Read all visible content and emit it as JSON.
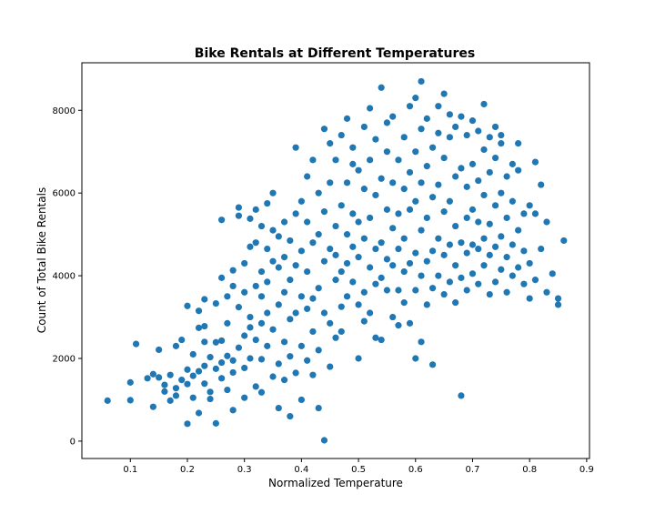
{
  "chart_data": {
    "type": "scatter",
    "title": "Bike Rentals at Different Temperatures",
    "xlabel": "Normalized Temperature",
    "ylabel": "Count of Total Bike Rentals",
    "xlim": [
      0.015,
      0.905
    ],
    "ylim": [
      -420,
      9150
    ],
    "xticks": [
      0.1,
      0.2,
      0.3,
      0.4,
      0.5,
      0.6,
      0.7,
      0.8,
      0.9
    ],
    "xtick_labels": [
      "0.1",
      "0.2",
      "0.3",
      "0.4",
      "0.5",
      "0.6",
      "0.7",
      "0.8",
      "0.9"
    ],
    "yticks": [
      0,
      2000,
      4000,
      6000,
      8000
    ],
    "ytick_labels": [
      "0",
      "2000",
      "4000",
      "6000",
      "8000"
    ],
    "grid": false,
    "legend": "none",
    "marker_color": "#1f77b4",
    "points": [
      [
        0.06,
        980
      ],
      [
        0.1,
        990
      ],
      [
        0.1,
        1420
      ],
      [
        0.11,
        2350
      ],
      [
        0.13,
        1520
      ],
      [
        0.14,
        1620
      ],
      [
        0.14,
        830
      ],
      [
        0.15,
        1540
      ],
      [
        0.15,
        2210
      ],
      [
        0.16,
        1360
      ],
      [
        0.16,
        1200
      ],
      [
        0.17,
        980
      ],
      [
        0.17,
        1600
      ],
      [
        0.18,
        1280
      ],
      [
        0.18,
        2300
      ],
      [
        0.18,
        1100
      ],
      [
        0.19,
        1480
      ],
      [
        0.19,
        2450
      ],
      [
        0.2,
        1730
      ],
      [
        0.2,
        1380
      ],
      [
        0.2,
        3270
      ],
      [
        0.2,
        420
      ],
      [
        0.21,
        1050
      ],
      [
        0.21,
        1580
      ],
      [
        0.21,
        2100
      ],
      [
        0.22,
        1690
      ],
      [
        0.22,
        2740
      ],
      [
        0.22,
        3150
      ],
      [
        0.22,
        680
      ],
      [
        0.23,
        1820
      ],
      [
        0.23,
        2400
      ],
      [
        0.23,
        2780
      ],
      [
        0.23,
        3430
      ],
      [
        0.23,
        1390
      ],
      [
        0.24,
        1190
      ],
      [
        0.24,
        1020
      ],
      [
        0.24,
        2030
      ],
      [
        0.25,
        2390
      ],
      [
        0.25,
        3330
      ],
      [
        0.25,
        1750
      ],
      [
        0.25,
        430
      ],
      [
        0.26,
        1900
      ],
      [
        0.26,
        2430
      ],
      [
        0.26,
        3950
      ],
      [
        0.26,
        5350
      ],
      [
        0.26,
        1520
      ],
      [
        0.27,
        2060
      ],
      [
        0.27,
        2850
      ],
      [
        0.27,
        3500
      ],
      [
        0.27,
        1240
      ],
      [
        0.28,
        1660
      ],
      [
        0.28,
        3750
      ],
      [
        0.28,
        4130
      ],
      [
        0.28,
        750
      ],
      [
        0.28,
        1950
      ],
      [
        0.29,
        2260
      ],
      [
        0.29,
        3240
      ],
      [
        0.29,
        5650
      ],
      [
        0.29,
        5450
      ],
      [
        0.3,
        1770
      ],
      [
        0.3,
        2550
      ],
      [
        0.3,
        4300
      ],
      [
        0.3,
        3600
      ],
      [
        0.3,
        1050
      ],
      [
        0.31,
        2000
      ],
      [
        0.31,
        2750
      ],
      [
        0.31,
        3000
      ],
      [
        0.31,
        5380
      ],
      [
        0.31,
        4700
      ],
      [
        0.32,
        1320
      ],
      [
        0.32,
        2450
      ],
      [
        0.32,
        3750
      ],
      [
        0.32,
        4800
      ],
      [
        0.32,
        5600
      ],
      [
        0.33,
        1980
      ],
      [
        0.33,
        2850
      ],
      [
        0.33,
        3500
      ],
      [
        0.33,
        4100
      ],
      [
        0.33,
        5200
      ],
      [
        0.33,
        1180
      ],
      [
        0.34,
        2300
      ],
      [
        0.34,
        3100
      ],
      [
        0.34,
        3850
      ],
      [
        0.34,
        4650
      ],
      [
        0.34,
        5750
      ],
      [
        0.35,
        1560
      ],
      [
        0.35,
        2700
      ],
      [
        0.35,
        4350
      ],
      [
        0.35,
        5100
      ],
      [
        0.35,
        6000
      ],
      [
        0.36,
        1870
      ],
      [
        0.36,
        3300
      ],
      [
        0.36,
        4200
      ],
      [
        0.36,
        4950
      ],
      [
        0.36,
        800
      ],
      [
        0.37,
        2400
      ],
      [
        0.37,
        3600
      ],
      [
        0.37,
        4450
      ],
      [
        0.37,
        5300
      ],
      [
        0.37,
        1480
      ],
      [
        0.38,
        2050
      ],
      [
        0.38,
        2950
      ],
      [
        0.38,
        3900
      ],
      [
        0.38,
        4850
      ],
      [
        0.38,
        600
      ],
      [
        0.39,
        1650
      ],
      [
        0.39,
        3100
      ],
      [
        0.39,
        4250
      ],
      [
        0.39,
        5500
      ],
      [
        0.39,
        7100
      ],
      [
        0.4,
        2300
      ],
      [
        0.4,
        3500
      ],
      [
        0.4,
        4600
      ],
      [
        0.4,
        5800
      ],
      [
        0.4,
        1000
      ],
      [
        0.41,
        1950
      ],
      [
        0.41,
        3200
      ],
      [
        0.41,
        4100
      ],
      [
        0.41,
        5300
      ],
      [
        0.41,
        6400
      ],
      [
        0.42,
        1600
      ],
      [
        0.42,
        2650
      ],
      [
        0.42,
        3450
      ],
      [
        0.42,
        4800
      ],
      [
        0.42,
        6800
      ],
      [
        0.43,
        2200
      ],
      [
        0.43,
        3700
      ],
      [
        0.43,
        5000
      ],
      [
        0.43,
        6000
      ],
      [
        0.43,
        800
      ],
      [
        0.44,
        20
      ],
      [
        0.44,
        3100
      ],
      [
        0.44,
        4350
      ],
      [
        0.44,
        5550
      ],
      [
        0.44,
        7550
      ],
      [
        0.45,
        1800
      ],
      [
        0.45,
        2850
      ],
      [
        0.45,
        4650
      ],
      [
        0.45,
        6250
      ],
      [
        0.45,
        7200
      ],
      [
        0.46,
        2500
      ],
      [
        0.46,
        3900
      ],
      [
        0.46,
        5200
      ],
      [
        0.46,
        6800
      ],
      [
        0.46,
        4500
      ],
      [
        0.47,
        3250
      ],
      [
        0.47,
        4100
      ],
      [
        0.47,
        5700
      ],
      [
        0.47,
        7400
      ],
      [
        0.47,
        2650
      ],
      [
        0.48,
        3500
      ],
      [
        0.48,
        4300
      ],
      [
        0.48,
        5000
      ],
      [
        0.48,
        6250
      ],
      [
        0.48,
        7800
      ],
      [
        0.49,
        3850
      ],
      [
        0.49,
        4700
      ],
      [
        0.49,
        5500
      ],
      [
        0.49,
        6700
      ],
      [
        0.49,
        7100
      ],
      [
        0.5,
        2000
      ],
      [
        0.5,
        3300
      ],
      [
        0.5,
        4450
      ],
      [
        0.5,
        5300
      ],
      [
        0.5,
        6550
      ],
      [
        0.51,
        2900
      ],
      [
        0.51,
        3600
      ],
      [
        0.51,
        4900
      ],
      [
        0.51,
        6100
      ],
      [
        0.51,
        7600
      ],
      [
        0.52,
        3100
      ],
      [
        0.52,
        4200
      ],
      [
        0.52,
        5400
      ],
      [
        0.52,
        6800
      ],
      [
        0.52,
        8050
      ],
      [
        0.53,
        2500
      ],
      [
        0.53,
        3800
      ],
      [
        0.53,
        4650
      ],
      [
        0.53,
        5950
      ],
      [
        0.53,
        7300
      ],
      [
        0.54,
        2450
      ],
      [
        0.54,
        3950
      ],
      [
        0.54,
        4800
      ],
      [
        0.54,
        6350
      ],
      [
        0.54,
        8550
      ],
      [
        0.55,
        3650
      ],
      [
        0.55,
        4400
      ],
      [
        0.55,
        5600
      ],
      [
        0.55,
        7000
      ],
      [
        0.55,
        7700
      ],
      [
        0.56,
        3000
      ],
      [
        0.56,
        4250
      ],
      [
        0.56,
        5150
      ],
      [
        0.56,
        6250
      ],
      [
        0.56,
        7850
      ],
      [
        0.57,
        2800
      ],
      [
        0.57,
        3650
      ],
      [
        0.57,
        4650
      ],
      [
        0.57,
        5500
      ],
      [
        0.57,
        6800
      ],
      [
        0.58,
        3350
      ],
      [
        0.58,
        4100
      ],
      [
        0.58,
        4900
      ],
      [
        0.58,
        6100
      ],
      [
        0.58,
        7350
      ],
      [
        0.59,
        2850
      ],
      [
        0.59,
        4300
      ],
      [
        0.59,
        5600
      ],
      [
        0.59,
        6500
      ],
      [
        0.59,
        8100
      ],
      [
        0.6,
        2000
      ],
      [
        0.6,
        3650
      ],
      [
        0.6,
        4550
      ],
      [
        0.6,
        5800
      ],
      [
        0.6,
        7000
      ],
      [
        0.6,
        8300
      ],
      [
        0.61,
        2400
      ],
      [
        0.61,
        4000
      ],
      [
        0.61,
        5100
      ],
      [
        0.61,
        6250
      ],
      [
        0.61,
        7550
      ],
      [
        0.61,
        8700
      ],
      [
        0.62,
        3300
      ],
      [
        0.62,
        4350
      ],
      [
        0.62,
        5400
      ],
      [
        0.62,
        6650
      ],
      [
        0.62,
        7800
      ],
      [
        0.63,
        1850
      ],
      [
        0.63,
        3700
      ],
      [
        0.63,
        4600
      ],
      [
        0.63,
        5900
      ],
      [
        0.63,
        7100
      ],
      [
        0.64,
        4000
      ],
      [
        0.64,
        4900
      ],
      [
        0.64,
        6200
      ],
      [
        0.64,
        7450
      ],
      [
        0.64,
        8100
      ],
      [
        0.65,
        3550
      ],
      [
        0.65,
        4500
      ],
      [
        0.65,
        5550
      ],
      [
        0.65,
        6850
      ],
      [
        0.65,
        8400
      ],
      [
        0.66,
        3850
      ],
      [
        0.66,
        4750
      ],
      [
        0.66,
        5800
      ],
      [
        0.66,
        7350
      ],
      [
        0.66,
        7900
      ],
      [
        0.67,
        3350
      ],
      [
        0.67,
        4250
      ],
      [
        0.67,
        5200
      ],
      [
        0.67,
        6400
      ],
      [
        0.67,
        7600
      ],
      [
        0.68,
        1100
      ],
      [
        0.68,
        3950
      ],
      [
        0.68,
        4800
      ],
      [
        0.68,
        6600
      ],
      [
        0.68,
        7850
      ],
      [
        0.69,
        3650
      ],
      [
        0.69,
        4550
      ],
      [
        0.69,
        5400
      ],
      [
        0.69,
        6150
      ],
      [
        0.69,
        7400
      ],
      [
        0.7,
        4050
      ],
      [
        0.7,
        4750
      ],
      [
        0.7,
        5600
      ],
      [
        0.7,
        6700
      ],
      [
        0.7,
        7750
      ],
      [
        0.71,
        3800
      ],
      [
        0.71,
        4650
      ],
      [
        0.71,
        5300
      ],
      [
        0.71,
        6300
      ],
      [
        0.71,
        7500
      ],
      [
        0.72,
        4250
      ],
      [
        0.72,
        4900
      ],
      [
        0.72,
        5950
      ],
      [
        0.72,
        7050
      ],
      [
        0.72,
        8150
      ],
      [
        0.73,
        3550
      ],
      [
        0.73,
        4500
      ],
      [
        0.73,
        5250
      ],
      [
        0.73,
        6500
      ],
      [
        0.73,
        7350
      ],
      [
        0.74,
        3850
      ],
      [
        0.74,
        4700
      ],
      [
        0.74,
        5700
      ],
      [
        0.74,
        6850
      ],
      [
        0.74,
        7600
      ],
      [
        0.75,
        4150
      ],
      [
        0.75,
        4950
      ],
      [
        0.75,
        6000
      ],
      [
        0.75,
        7200
      ],
      [
        0.75,
        7400
      ],
      [
        0.76,
        3600
      ],
      [
        0.76,
        4450
      ],
      [
        0.76,
        5400
      ],
      [
        0.76,
        6400
      ],
      [
        0.77,
        4000
      ],
      [
        0.77,
        4750
      ],
      [
        0.77,
        5800
      ],
      [
        0.77,
        6700
      ],
      [
        0.78,
        4200
      ],
      [
        0.78,
        5100
      ],
      [
        0.78,
        6550
      ],
      [
        0.78,
        7200
      ],
      [
        0.79,
        3800
      ],
      [
        0.79,
        4600
      ],
      [
        0.79,
        5500
      ],
      [
        0.8,
        3450
      ],
      [
        0.8,
        4300
      ],
      [
        0.8,
        5700
      ],
      [
        0.81,
        3900
      ],
      [
        0.81,
        5500
      ],
      [
        0.81,
        6750
      ],
      [
        0.82,
        4650
      ],
      [
        0.82,
        6200
      ],
      [
        0.83,
        3600
      ],
      [
        0.83,
        5300
      ],
      [
        0.84,
        4050
      ],
      [
        0.85,
        3300
      ],
      [
        0.85,
        3450
      ],
      [
        0.86,
        4850
      ]
    ]
  }
}
